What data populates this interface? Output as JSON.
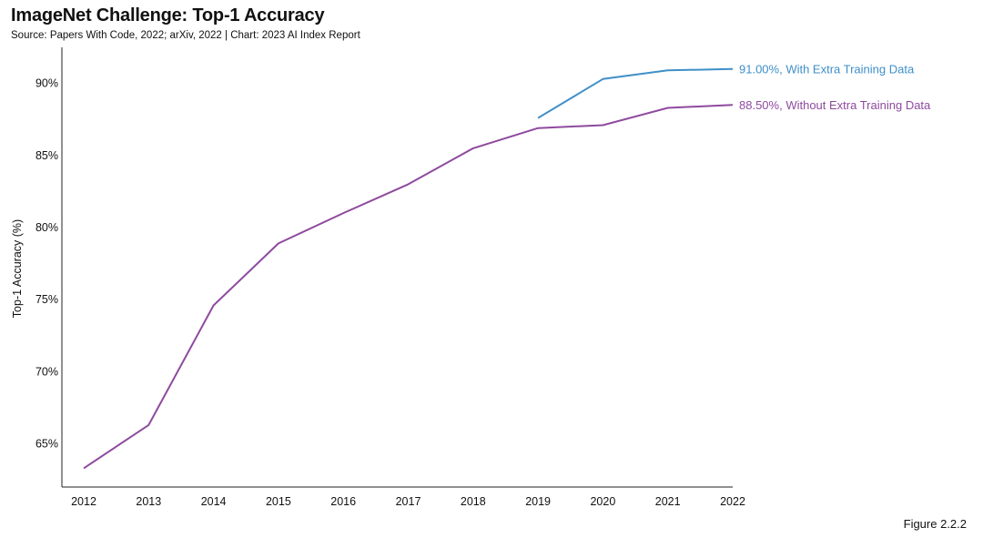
{
  "header": {
    "title": "ImageNet Challenge: Top-1 Accuracy",
    "subtitle": "Source: Papers With Code, 2022; arXiv, 2022 | Chart: 2023 AI Index Report"
  },
  "footer": {
    "figure_label": "Figure 2.2.2"
  },
  "chart_data": {
    "type": "line",
    "title": "ImageNet Challenge: Top-1 Accuracy",
    "xlabel": "",
    "ylabel": "Top-1 Accuracy (%)",
    "x": [
      2012,
      2013,
      2014,
      2015,
      2016,
      2017,
      2018,
      2019,
      2020,
      2021,
      2022
    ],
    "ylim": [
      62,
      92.5
    ],
    "yticks": [
      65,
      70,
      75,
      80,
      85,
      90
    ],
    "ytick_labels": [
      "65%",
      "70%",
      "75%",
      "80%",
      "85%",
      "90%"
    ],
    "grid": false,
    "series": [
      {
        "name": "Without Extra Training Data",
        "label": "88.50%, Without Extra Training Data",
        "color": "#8e4a9e",
        "x": [
          2012,
          2013,
          2014,
          2015,
          2016,
          2017,
          2018,
          2019,
          2020,
          2021,
          2022
        ],
        "values": [
          63.3,
          66.3,
          74.6,
          78.9,
          81.0,
          83.0,
          85.5,
          86.9,
          87.1,
          88.3,
          88.5
        ]
      },
      {
        "name": "With Extra Training Data",
        "label": "91.00%, With Extra Training Data",
        "color": "#3f8fc8",
        "x": [
          2019,
          2020,
          2021,
          2022
        ],
        "values": [
          87.6,
          90.3,
          90.9,
          91.0
        ]
      }
    ]
  }
}
